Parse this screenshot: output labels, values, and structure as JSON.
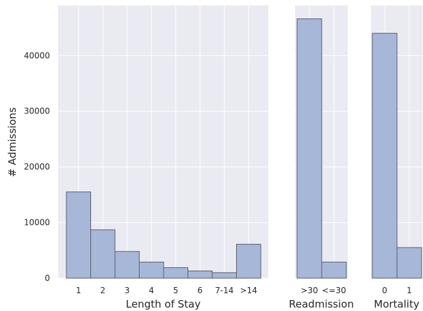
{
  "chart_data": {
    "type": "bar",
    "ylabel": "# Admissions",
    "ylim": [
      0,
      49000
    ],
    "yticks": [
      0,
      10000,
      20000,
      30000,
      40000
    ],
    "grid": true,
    "panels": [
      {
        "xlabel": "Length of Stay",
        "categories": [
          "1",
          "2",
          "3",
          "4",
          "5",
          "6",
          "7-14",
          ">14"
        ],
        "values": [
          15500,
          8700,
          4800,
          2900,
          1900,
          1300,
          1000,
          6100
        ]
      },
      {
        "xlabel": "Readmission",
        "categories": [
          ">30",
          "<=30"
        ],
        "values": [
          46600,
          2900
        ]
      },
      {
        "xlabel": "Mortality",
        "categories": [
          "0",
          "1"
        ],
        "values": [
          44000,
          5500
        ]
      }
    ]
  }
}
